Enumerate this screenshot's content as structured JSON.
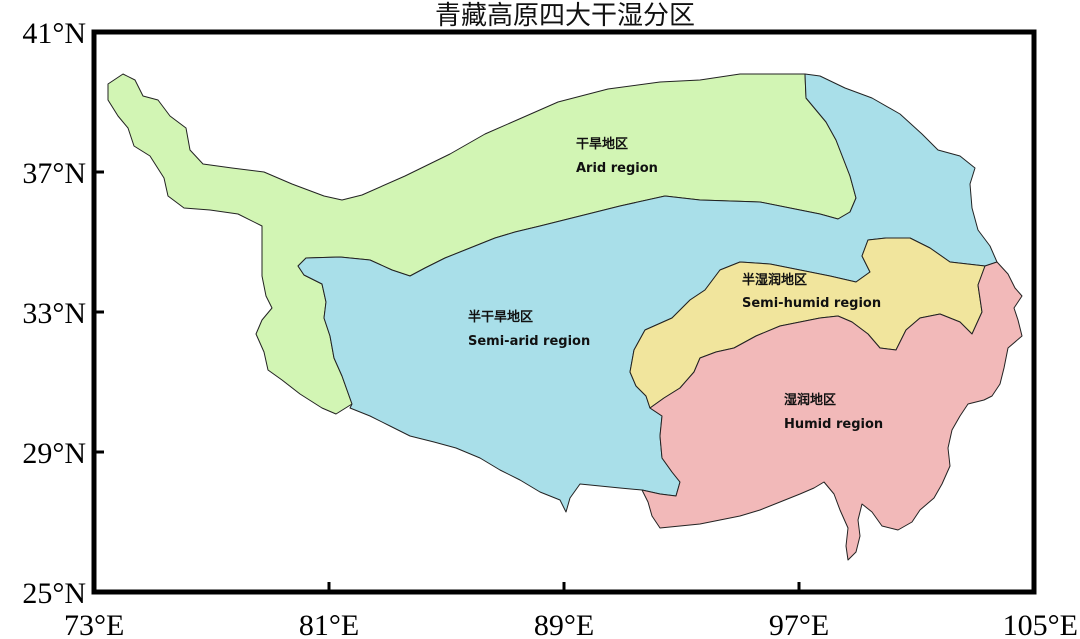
{
  "map": {
    "title": "青藏高原四大干湿分区",
    "frame": {
      "lon_range": [
        73,
        105
      ],
      "lat_range": [
        25,
        41
      ]
    },
    "x_ticks": [
      {
        "value": 73,
        "label": "73°E"
      },
      {
        "value": 81,
        "label": "81°E"
      },
      {
        "value": 89,
        "label": "89°E"
      },
      {
        "value": 97,
        "label": "97°E"
      },
      {
        "value": 105,
        "label": "105°E"
      }
    ],
    "y_ticks": [
      {
        "value": 25,
        "label": "25°N"
      },
      {
        "value": 29,
        "label": "29°N"
      },
      {
        "value": 33,
        "label": "33°N"
      },
      {
        "value": 37,
        "label": "37°N"
      },
      {
        "value": 41,
        "label": "41°N"
      }
    ],
    "regions": [
      {
        "id": "arid",
        "name_zh": "干旱地区",
        "name_en": "Arid region",
        "color": "#d2f5b4"
      },
      {
        "id": "semi-arid",
        "name_zh": "半干旱地区",
        "name_en": "Semi-arid region",
        "color": "#a9dfe9"
      },
      {
        "id": "semi-humid",
        "name_zh": "半湿润地区",
        "name_en": "Semi-humid region",
        "color": "#f1e59d"
      },
      {
        "id": "humid",
        "name_zh": "湿润地区",
        "name_en": "Humid region",
        "color": "#f2b9b9"
      }
    ]
  }
}
